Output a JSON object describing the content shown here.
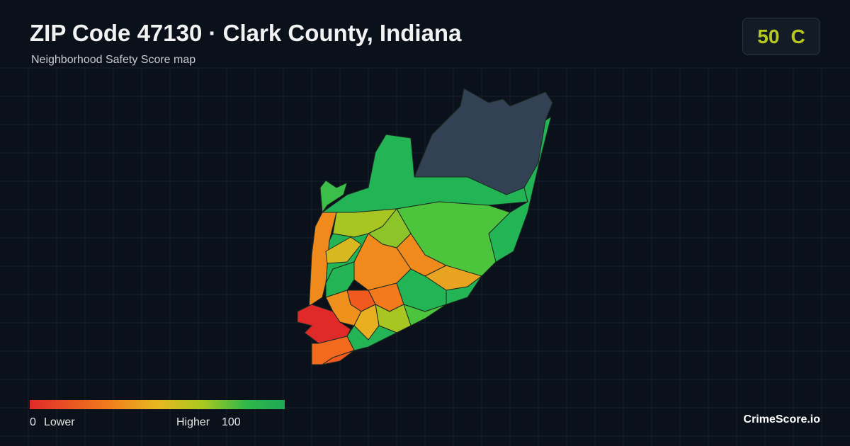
{
  "header": {
    "title": "ZIP Code 47130 · Clark County, Indiana",
    "subtitle": "Neighborhood Safety Score map"
  },
  "score": {
    "value": 50,
    "grade": "C"
  },
  "legend": {
    "min": 0,
    "min_label": "Lower",
    "max_label": "Higher",
    "max": 100
  },
  "brand": "CrimeScore.io"
}
